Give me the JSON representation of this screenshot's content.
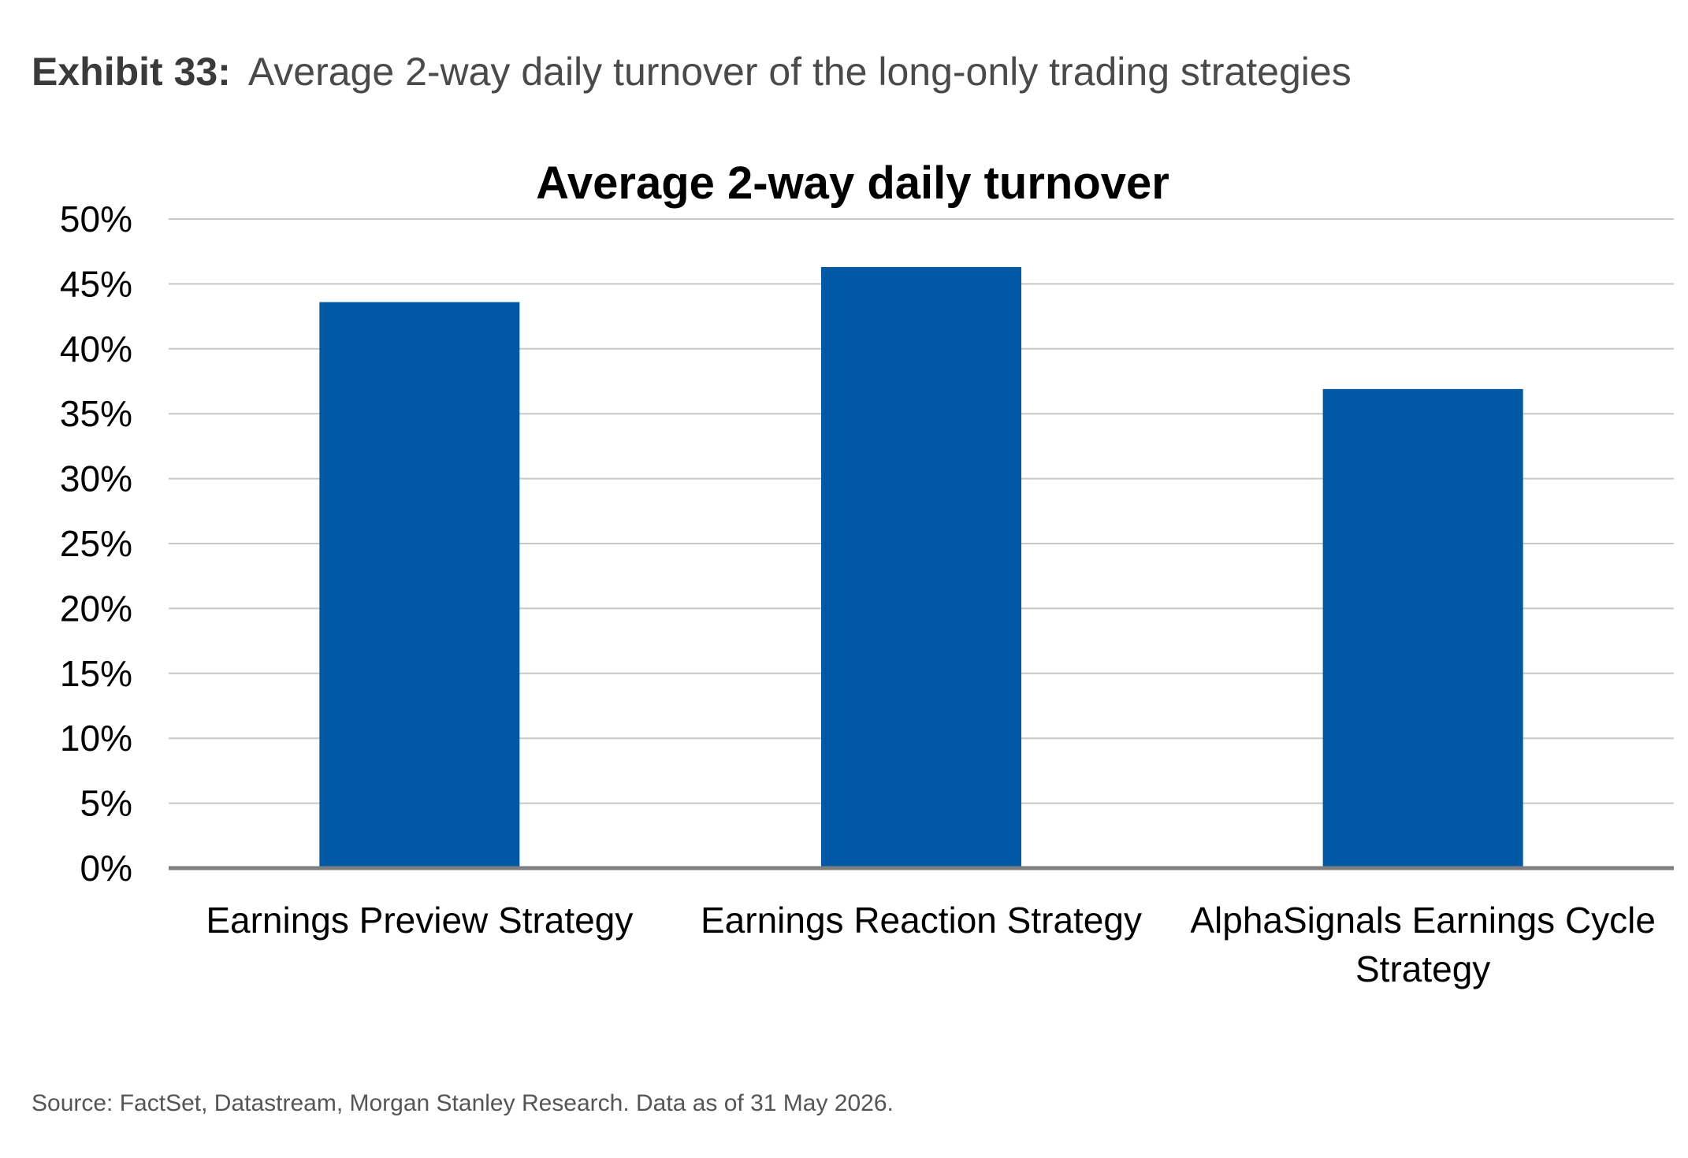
{
  "exhibit": {
    "label": "Exhibit 33:",
    "title": "Average 2-way daily turnover of the long-only trading strategies"
  },
  "chart_data": {
    "type": "bar",
    "title": "Average 2-way daily turnover",
    "xlabel": "",
    "ylabel": "",
    "categories": [
      [
        "Earnings Preview Strategy"
      ],
      [
        "Earnings Reaction Strategy"
      ],
      [
        "AlphaSignals Earnings Cycle",
        "Strategy"
      ]
    ],
    "values": [
      43.6,
      46.3,
      36.9
    ],
    "value_unit": "%",
    "ylim": [
      0,
      50
    ],
    "yticks": [
      "0%",
      "5%",
      "10%",
      "15%",
      "20%",
      "25%",
      "30%",
      "35%",
      "40%",
      "45%",
      "50%"
    ],
    "grid": true,
    "legend": "none",
    "colors": {
      "bar": "#0059A4",
      "grid": "#C8C8C8",
      "axis": "#7F7F7F"
    }
  },
  "source": "Source: FactSet, Datastream, Morgan Stanley Research. Data as of 31 May 2026."
}
